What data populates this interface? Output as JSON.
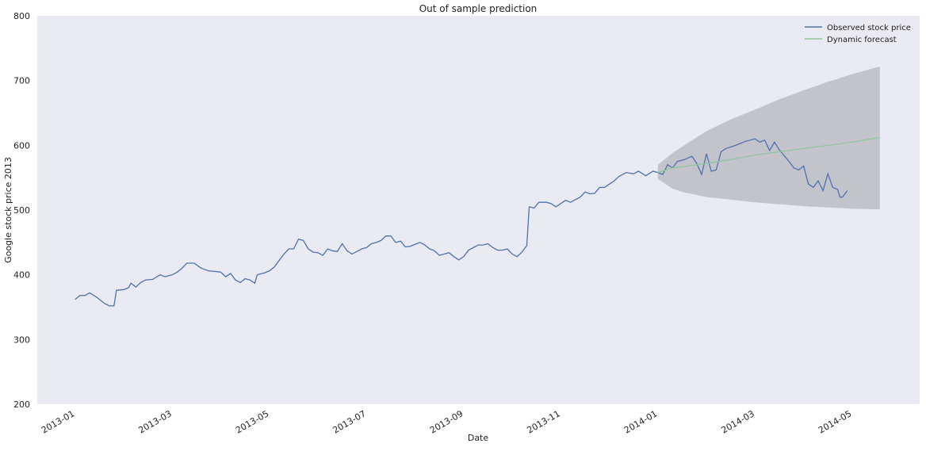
{
  "chart_data": {
    "type": "line",
    "title": "Out of sample prediction",
    "x_label": "Date",
    "y_label": "Google stock price 2013",
    "xlim": [
      -0.78,
      17.39
    ],
    "xticks": [
      {
        "value": 0,
        "label": "2013-01"
      },
      {
        "value": 2,
        "label": "2013-03"
      },
      {
        "value": 4,
        "label": "2013-05"
      },
      {
        "value": 6,
        "label": "2013-07"
      },
      {
        "value": 8,
        "label": "2013-09"
      },
      {
        "value": 10,
        "label": "2013-11"
      },
      {
        "value": 12,
        "label": "2014-01"
      },
      {
        "value": 14,
        "label": "2014-03"
      },
      {
        "value": 16,
        "label": "2014-05"
      }
    ],
    "ylim": [
      200,
      800
    ],
    "yticks": [
      200,
      300,
      400,
      500,
      600,
      700,
      800
    ],
    "grid": false,
    "legend": "upper right",
    "series": [
      {
        "name": "Observed stock price",
        "color": "#4c72b0",
        "x": [
          0,
          0.1,
          0.2,
          0.3,
          0.45,
          0.6,
          0.7,
          0.8,
          0.85,
          1.0,
          1.1,
          1.15,
          1.25,
          1.35,
          1.45,
          1.6,
          1.75,
          1.85,
          2.0,
          2.1,
          2.2,
          2.3,
          2.45,
          2.6,
          2.75,
          2.9,
          3.0,
          3.1,
          3.2,
          3.3,
          3.4,
          3.5,
          3.6,
          3.7,
          3.75,
          3.9,
          4.0,
          4.1,
          4.2,
          4.3,
          4.4,
          4.5,
          4.6,
          4.7,
          4.8,
          4.9,
          5.0,
          5.1,
          5.2,
          5.3,
          5.4,
          5.5,
          5.6,
          5.7,
          5.8,
          5.9,
          6.0,
          6.1,
          6.2,
          6.3,
          6.4,
          6.5,
          6.6,
          6.7,
          6.8,
          6.9,
          7.0,
          7.1,
          7.2,
          7.3,
          7.4,
          7.5,
          7.6,
          7.7,
          7.8,
          7.9,
          8.0,
          8.1,
          8.2,
          8.3,
          8.4,
          8.5,
          8.6,
          8.7,
          8.8,
          8.9,
          9.0,
          9.1,
          9.2,
          9.3,
          9.35,
          9.45,
          9.55,
          9.7,
          9.8,
          9.9,
          10.0,
          10.1,
          10.2,
          10.4,
          10.5,
          10.6,
          10.7,
          10.8,
          10.9,
          11.0,
          11.1,
          11.2,
          11.35,
          11.5,
          11.6,
          11.75,
          11.9,
          12.0,
          12.1,
          12.2,
          12.3,
          12.4,
          12.55,
          12.7,
          12.8,
          12.9,
          13.0,
          13.1,
          13.2,
          13.3,
          13.4,
          13.6,
          13.8,
          14.0,
          14.1,
          14.2,
          14.3,
          14.4,
          14.5,
          14.7,
          14.8,
          14.9,
          15.0,
          15.1,
          15.2,
          15.3,
          15.4,
          15.5,
          15.6,
          15.7,
          15.75,
          15.8,
          15.9
        ],
        "values": [
          362,
          368,
          368,
          372,
          365,
          356,
          352,
          352,
          376,
          377,
          380,
          387,
          381,
          388,
          392,
          393,
          400,
          397,
          400,
          404,
          410,
          418,
          418,
          410,
          406,
          405,
          404,
          397,
          402,
          392,
          388,
          394,
          392,
          387,
          400,
          403,
          406,
          412,
          422,
          432,
          440,
          440,
          455,
          453,
          440,
          435,
          434,
          430,
          440,
          437,
          436,
          448,
          437,
          432,
          436,
          440,
          442,
          448,
          450,
          453,
          460,
          460,
          450,
          452,
          443,
          444,
          447,
          450,
          446,
          440,
          437,
          430,
          432,
          434,
          428,
          423,
          428,
          438,
          442,
          446,
          446,
          448,
          442,
          438,
          438,
          440,
          432,
          428,
          435,
          445,
          505,
          503,
          512,
          512,
          510,
          505,
          510,
          515,
          512,
          520,
          528,
          525,
          526,
          535,
          535,
          540,
          545,
          552,
          558,
          556,
          560,
          553,
          560,
          558,
          555,
          570,
          565,
          575,
          578,
          583,
          572,
          555,
          587,
          560,
          562,
          590,
          595,
          600,
          606,
          610,
          605,
          608,
          592,
          605,
          593,
          575,
          565,
          562,
          568,
          540,
          535,
          545,
          530,
          556,
          535,
          532,
          520,
          520,
          530
        ]
      },
      {
        "name": "Dynamic forecast",
        "color": "#8fc79a",
        "band_color": "#a9a9b3",
        "x": [
          12.0,
          12.3,
          12.5,
          13.0,
          13.5,
          14.0,
          14.5,
          15.0,
          15.5,
          16.0,
          16.57
        ],
        "values": [
          558,
          565,
          567,
          572,
          578,
          585,
          590,
          595,
          600,
          605,
          612
        ],
        "ci_lower": [
          548,
          533,
          528,
          520,
          516,
          512,
          509,
          506,
          504,
          502,
          501
        ],
        "ci_upper": [
          570,
          588,
          598,
          622,
          640,
          655,
          671,
          685,
          698,
          710,
          722
        ]
      }
    ]
  }
}
